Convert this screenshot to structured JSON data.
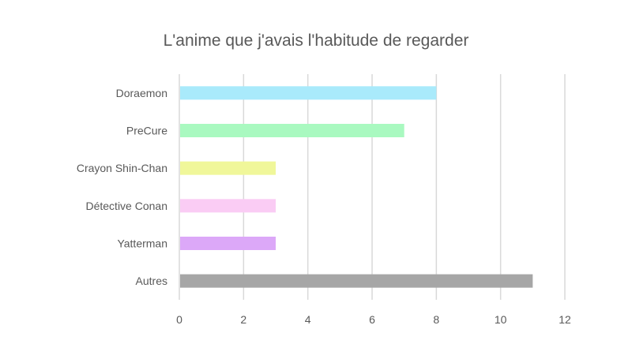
{
  "chart_data": {
    "type": "bar",
    "orientation": "horizontal",
    "title": "L'anime que j'avais l'habitude de regarder",
    "categories": [
      "Doraemon",
      "PreCure",
      "Crayon Shin-Chan",
      "Détective Conan",
      "Yatterman",
      "Autres"
    ],
    "values": [
      8,
      7,
      3,
      3,
      3,
      11
    ],
    "colors": [
      "#A9EAFB",
      "#A9F9C0",
      "#F0F79A",
      "#FACCF4",
      "#DCA8F8",
      "#A6A6A6"
    ],
    "xlim": [
      0,
      12
    ],
    "xticks": [
      "0",
      "2",
      "4",
      "6",
      "8",
      "10",
      "12"
    ],
    "xlabel": "",
    "ylabel": "",
    "grid": true,
    "legend": "none"
  }
}
